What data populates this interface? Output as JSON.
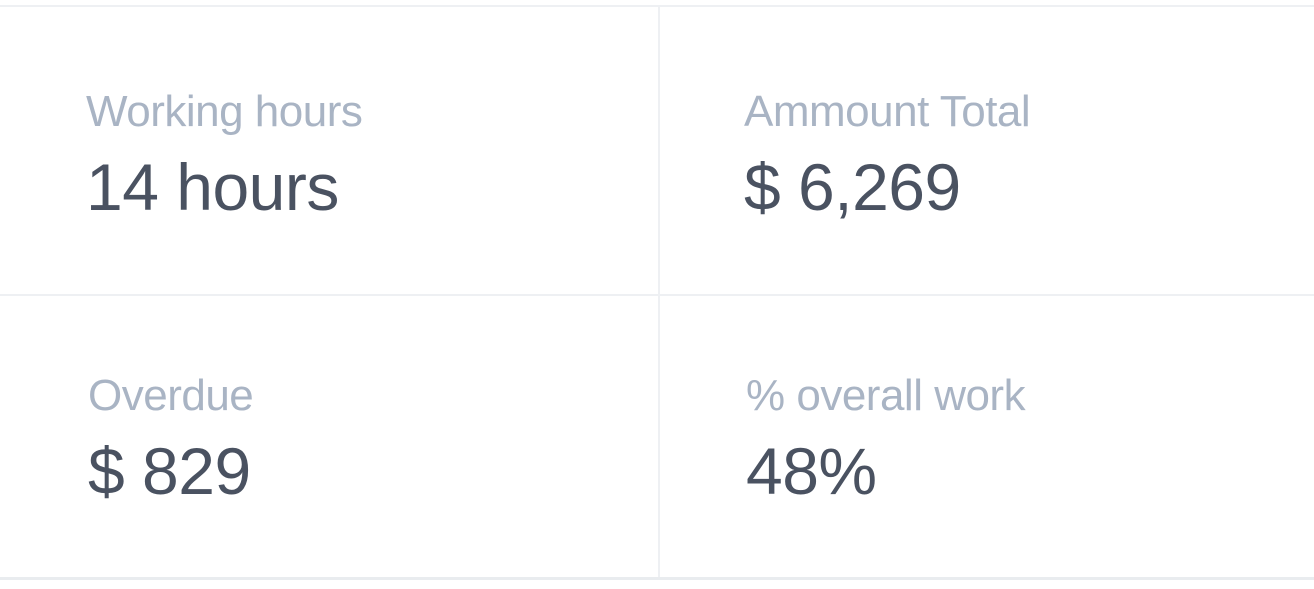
{
  "stats": {
    "working_hours": {
      "label": "Working hours",
      "value": "14 hours"
    },
    "amount_total": {
      "label": "Ammount Total",
      "value": "$ 6,269"
    },
    "overdue": {
      "label": "Overdue",
      "value": "$ 829"
    },
    "overall_work": {
      "label": "% overall work",
      "value": "48%"
    }
  }
}
